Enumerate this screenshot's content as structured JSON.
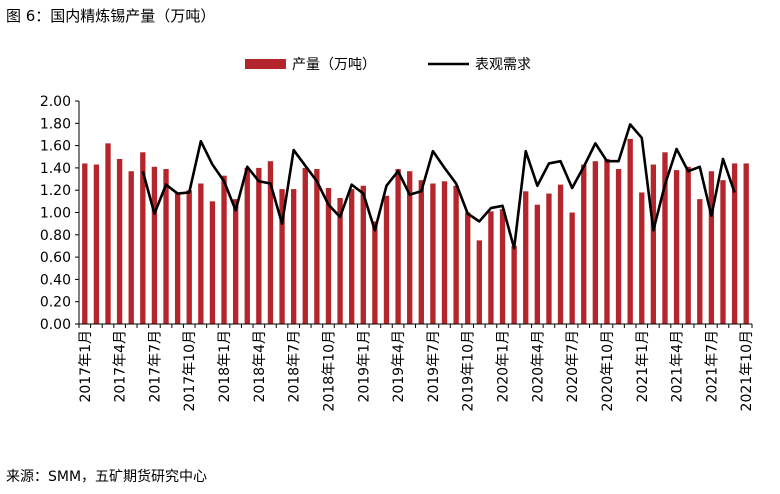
{
  "figure": {
    "title": "图 6：国内精炼锡产量（万吨）",
    "source": "来源：SMM，五矿期货研究中心"
  },
  "colors": {
    "bar": "#B5262C",
    "line": "#000000",
    "axis": "#000000"
  },
  "chart_data": {
    "type": "bar+line",
    "title": "",
    "xlabel": "",
    "ylabel": "",
    "ylim": [
      0,
      2.0
    ],
    "yticks": [
      "0.00",
      "0.20",
      "0.40",
      "0.60",
      "0.80",
      "1.00",
      "1.20",
      "1.40",
      "1.60",
      "1.80",
      "2.00"
    ],
    "legend_position": "top",
    "grid": false,
    "categories": [
      "2017年1月",
      "2017年2月",
      "2017年3月",
      "2017年4月",
      "2017年5月",
      "2017年6月",
      "2017年7月",
      "2017年8月",
      "2017年9月",
      "2017年10月",
      "2017年11月",
      "2017年12月",
      "2018年1月",
      "2018年2月",
      "2018年3月",
      "2018年4月",
      "2018年5月",
      "2018年6月",
      "2018年7月",
      "2018年8月",
      "2018年9月",
      "2018年10月",
      "2018年11月",
      "2018年12月",
      "2019年1月",
      "2019年2月",
      "2019年3月",
      "2019年4月",
      "2019年5月",
      "2019年6月",
      "2019年7月",
      "2019年8月",
      "2019年9月",
      "2019年10月",
      "2019年11月",
      "2019年12月",
      "2020年1月",
      "2020年2月",
      "2020年3月",
      "2020年4月",
      "2020年5月",
      "2020年6月",
      "2020年7月",
      "2020年8月",
      "2020年9月",
      "2020年10月",
      "2020年11月",
      "2020年12月",
      "2021年1月",
      "2021年2月",
      "2021年3月",
      "2021年4月",
      "2021年5月",
      "2021年6月",
      "2021年7月",
      "2021年8月",
      "2021年9月",
      "2021年10月"
    ],
    "xtick_labels": [
      "2017年1月",
      "2017年4月",
      "2017年7月",
      "2017年10月",
      "2018年1月",
      "2018年4月",
      "2018年7月",
      "2018年10月",
      "2019年1月",
      "2019年4月",
      "2019年7月",
      "2019年10月",
      "2020年1月",
      "2020年4月",
      "2020年7月",
      "2020年10月",
      "2021年1月",
      "2021年4月",
      "2021年7月",
      "2021年10月"
    ],
    "series": [
      {
        "name": "产量（万吨）",
        "type": "bar",
        "values": [
          1.44,
          1.43,
          1.62,
          1.48,
          1.37,
          1.54,
          1.41,
          1.39,
          1.18,
          1.2,
          1.26,
          1.1,
          1.33,
          1.12,
          1.4,
          1.4,
          1.46,
          1.21,
          1.21,
          1.4,
          1.39,
          1.22,
          1.13,
          1.21,
          1.24,
          0.92,
          1.15,
          1.39,
          1.37,
          1.29,
          1.26,
          1.28,
          1.24,
          1.0,
          0.75,
          1.01,
          1.03,
          0.7,
          1.19,
          1.07,
          1.17,
          1.25,
          1.0,
          1.43,
          1.46,
          1.48,
          1.39,
          1.66,
          1.18,
          1.43,
          1.54,
          1.38,
          1.41,
          1.12,
          1.37,
          1.29,
          1.44,
          1.44
        ]
      },
      {
        "name": "表观需求",
        "type": "line",
        "values": [
          null,
          null,
          null,
          null,
          null,
          1.37,
          0.99,
          1.25,
          1.17,
          1.18,
          1.64,
          1.43,
          1.28,
          1.02,
          1.41,
          1.28,
          1.26,
          0.9,
          1.56,
          1.42,
          1.28,
          1.07,
          0.96,
          1.25,
          1.17,
          0.84,
          1.24,
          1.37,
          1.16,
          1.19,
          1.55,
          1.4,
          1.26,
          0.99,
          0.92,
          1.04,
          1.06,
          0.68,
          1.55,
          1.24,
          1.44,
          1.46,
          1.22,
          1.41,
          1.62,
          1.46,
          1.46,
          1.79,
          1.67,
          0.84,
          1.25,
          1.57,
          1.37,
          1.41,
          0.97,
          1.48,
          1.18,
          null
        ]
      }
    ]
  }
}
